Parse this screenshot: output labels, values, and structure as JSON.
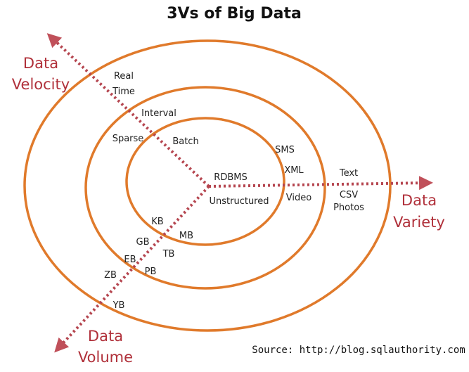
{
  "title": "3Vs of Big Data",
  "velocity": {
    "label": [
      "Data",
      "Velocity"
    ],
    "terms": [
      [
        "Real",
        "Time"
      ],
      [
        "Interval"
      ],
      [
        "Sparse"
      ],
      [
        "Batch"
      ]
    ]
  },
  "variety": {
    "label": [
      "Data",
      "Variety"
    ],
    "terms": [
      [
        "RDBMS"
      ],
      [
        "Unstructured"
      ],
      [
        "SMS"
      ],
      [
        "XML"
      ],
      [
        "Video"
      ],
      [
        "Text"
      ],
      [
        "CSV"
      ],
      [
        "Photos"
      ]
    ]
  },
  "volume": {
    "label": [
      "Data",
      "Volume"
    ],
    "terms": [
      [
        "KB"
      ],
      [
        "MB"
      ],
      [
        "GB"
      ],
      [
        "TB"
      ],
      [
        "EB"
      ],
      [
        "PB"
      ],
      [
        "ZB"
      ],
      [
        "YB"
      ]
    ]
  },
  "source": "Source: http://blog.sqlauthority.com"
}
